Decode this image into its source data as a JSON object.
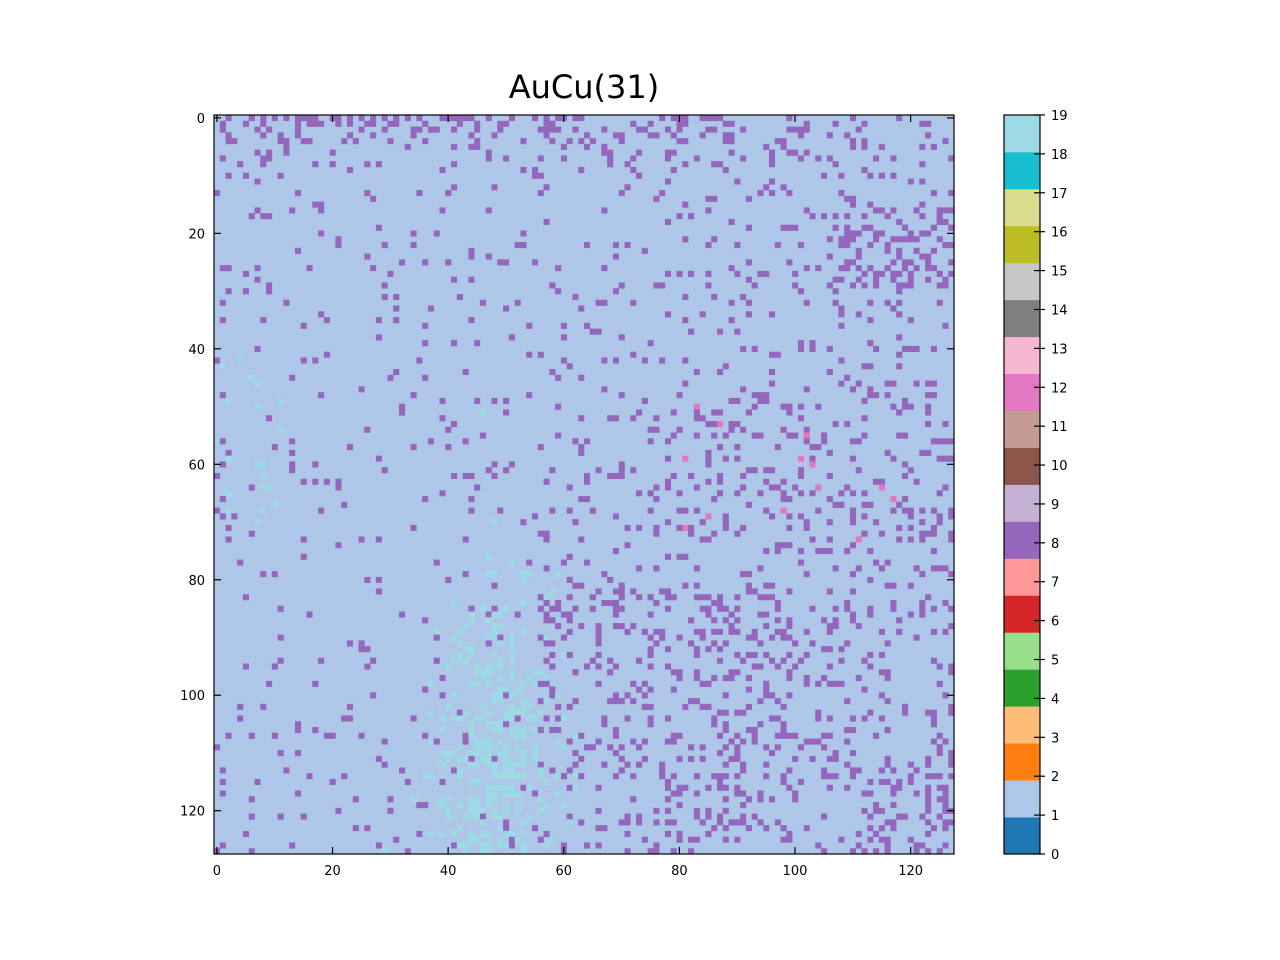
{
  "chart_data": {
    "type": "heatmap",
    "title": "AuCu(31)",
    "xlabel": "",
    "ylabel": "",
    "rows": 128,
    "cols": 128,
    "xlim": [
      0,
      128
    ],
    "ylim": [
      128,
      0
    ],
    "x_ticks": [
      "0",
      "20",
      "40",
      "60",
      "80",
      "100",
      "120"
    ],
    "y_ticks": [
      "0",
      "20",
      "40",
      "60",
      "80",
      "100",
      "120"
    ],
    "colorbar": {
      "ticks": [
        "0",
        "1",
        "2",
        "3",
        "4",
        "5",
        "6",
        "7",
        "8",
        "9",
        "10",
        "11",
        "12",
        "13",
        "14",
        "15",
        "16",
        "17",
        "18",
        "19"
      ],
      "colors": [
        "#1f77b4",
        "#aec7e8",
        "#ff7f0e",
        "#ffbb78",
        "#2ca02c",
        "#98df8a",
        "#d62728",
        "#ff9896",
        "#9467bd",
        "#c5b0d5",
        "#8c564b",
        "#c49c94",
        "#e377c2",
        "#f7b6d2",
        "#7f7f7f",
        "#c7c7c7",
        "#bcbd22",
        "#dbdb8d",
        "#17becf",
        "#9edae5"
      ],
      "range": [
        0,
        19
      ]
    },
    "value_distribution": {
      "background_value": 1,
      "minority_values": [
        8,
        19,
        12
      ],
      "notes": "Value 8 clusters along the top rows and right half; value 19 concentrated near column 40-55, rows 80-128; value 12 sparse near columns 80-120, rows 50-75."
    }
  }
}
